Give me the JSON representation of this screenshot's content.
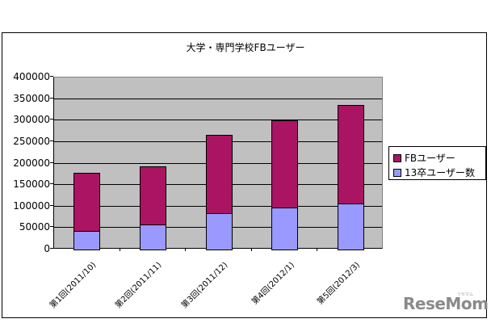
{
  "chart_data": {
    "type": "bar",
    "stacked": true,
    "title": "大学・専門学校FBユーザー",
    "xlabel": "",
    "ylabel": "",
    "ylim": [
      0,
      400000
    ],
    "yticks": [
      "0",
      "50000",
      "100000",
      "150000",
      "200000",
      "250000",
      "300000",
      "350000",
      "400000"
    ],
    "grid": true,
    "legend_position": "right",
    "categories": [
      "第1回(2011/10)",
      "第2回(2011/11)",
      "第3回(2011/12)",
      "第4回(2012/1)",
      "第5回(2012/3)"
    ],
    "series": [
      {
        "name": "13卒ユーザー数",
        "color": "#9999ff",
        "values": [
          42600,
          57600,
          84000,
          97000,
          106500
        ]
      },
      {
        "name": "FBユーザー",
        "color": "#aa1463",
        "values": [
          136400,
          135400,
          182000,
          203000,
          229100
        ]
      }
    ],
    "totals": [
      179000,
      193000,
      266000,
      300000,
      335600
    ]
  },
  "legend": {
    "items": [
      {
        "label": "FBユーザー",
        "color": "#aa1463"
      },
      {
        "label": "13卒ユーザー数",
        "color": "#9999ff"
      }
    ]
  },
  "watermark": {
    "text": "ReseMom",
    "kana": "リセマム"
  }
}
